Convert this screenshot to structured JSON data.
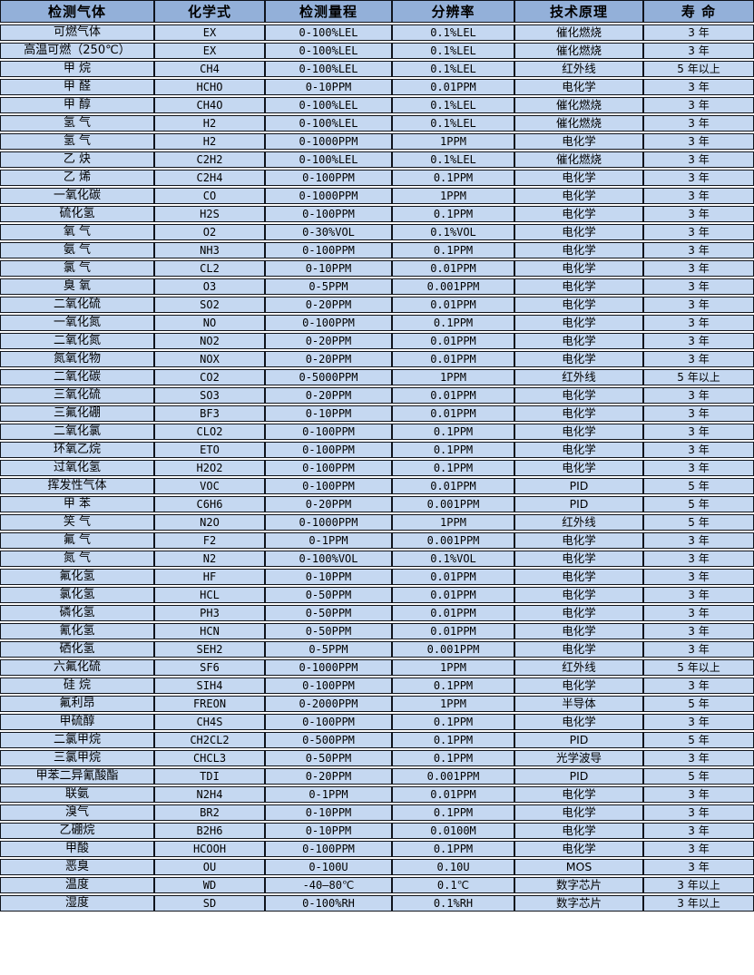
{
  "colors": {
    "header_bg": "#93b0d9",
    "row_bg": "#c5d8f1",
    "border": "#10141c",
    "row_gap": "#ffffff",
    "text": "#000000"
  },
  "chart_data": {
    "type": "table",
    "columns": [
      "检测气体",
      "化学式",
      "检测量程",
      "分辨率",
      "技术原理",
      "寿 命"
    ],
    "rows": [
      [
        "可燃气体",
        "EX",
        "0-100%LEL",
        "0.1%LEL",
        "催化燃烧",
        "3 年"
      ],
      [
        "高温可燃（250℃）",
        "EX",
        "0-100%LEL",
        "0.1%LEL",
        "催化燃烧",
        "3 年"
      ],
      [
        "甲 烷",
        "CH4",
        "0-100%LEL",
        "0.1%LEL",
        "红外线",
        "5 年以上"
      ],
      [
        "甲 醛",
        "HCHO",
        "0-10PPM",
        "0.01PPM",
        "电化学",
        "3 年"
      ],
      [
        "甲 醇",
        "CH4O",
        "0-100%LEL",
        "0.1%LEL",
        "催化燃烧",
        "3 年"
      ],
      [
        "氢 气",
        "H2",
        "0-100%LEL",
        "0.1%LEL",
        "催化燃烧",
        "3 年"
      ],
      [
        "氢 气",
        "H2",
        "0-1000PPM",
        "1PPM",
        "电化学",
        "3 年"
      ],
      [
        "乙 炔",
        "C2H2",
        "0-100%LEL",
        "0.1%LEL",
        "催化燃烧",
        "3 年"
      ],
      [
        "乙 烯",
        "C2H4",
        "0-100PPM",
        "0.1PPM",
        "电化学",
        "3 年"
      ],
      [
        "一氧化碳",
        "CO",
        "0-1000PPM",
        "1PPM",
        "电化学",
        "3 年"
      ],
      [
        "硫化氢",
        "H2S",
        "0-100PPM",
        "0.1PPM",
        "电化学",
        "3 年"
      ],
      [
        "氧 气",
        "O2",
        "0-30%VOL",
        "0.1%VOL",
        "电化学",
        "3 年"
      ],
      [
        "氨 气",
        "NH3",
        "0-100PPM",
        "0.1PPM",
        "电化学",
        "3 年"
      ],
      [
        "氯 气",
        "CL2",
        "0-10PPM",
        "0.01PPM",
        "电化学",
        "3 年"
      ],
      [
        "臭 氧",
        "O3",
        "0-5PPM",
        "0.001PPM",
        "电化学",
        "3 年"
      ],
      [
        "二氧化硫",
        "SO2",
        "0-20PPM",
        "0.01PPM",
        "电化学",
        "3 年"
      ],
      [
        "一氧化氮",
        "NO",
        "0-100PPM",
        "0.1PPM",
        "电化学",
        "3 年"
      ],
      [
        "二氧化氮",
        "NO2",
        "0-20PPM",
        "0.01PPM",
        "电化学",
        "3 年"
      ],
      [
        "氮氧化物",
        "NOX",
        "0-20PPM",
        "0.01PPM",
        "电化学",
        "3 年"
      ],
      [
        "二氧化碳",
        "CO2",
        "0-5000PPM",
        "1PPM",
        "红外线",
        "5 年以上"
      ],
      [
        "三氧化硫",
        "SO3",
        "0-20PPM",
        "0.01PPM",
        "电化学",
        "3 年"
      ],
      [
        "三氟化硼",
        "BF3",
        "0-10PPM",
        "0.01PPM",
        "电化学",
        "3 年"
      ],
      [
        "二氧化氯",
        "CLO2",
        "0-100PPM",
        "0.1PPM",
        "电化学",
        "3 年"
      ],
      [
        "环氧乙烷",
        "ETO",
        "0-100PPM",
        "0.1PPM",
        "电化学",
        "3 年"
      ],
      [
        "过氧化氢",
        "H2O2",
        "0-100PPM",
        "0.1PPM",
        "电化学",
        "3 年"
      ],
      [
        "挥发性气体",
        "VOC",
        "0-100PPM",
        "0.01PPM",
        "PID",
        "5 年"
      ],
      [
        "甲 苯",
        "C6H6",
        "0-20PPM",
        "0.001PPM",
        "PID",
        "5 年"
      ],
      [
        "笑 气",
        "N2O",
        "0-1000PPM",
        "1PPM",
        "红外线",
        "5 年"
      ],
      [
        "氟 气",
        "F2",
        "0-1PPM",
        "0.001PPM",
        "电化学",
        "3 年"
      ],
      [
        "氮 气",
        "N2",
        "0-100%VOL",
        "0.1%VOL",
        "电化学",
        "3 年"
      ],
      [
        "氟化氢",
        "HF",
        "0-10PPM",
        "0.01PPM",
        "电化学",
        "3 年"
      ],
      [
        "氯化氢",
        "HCL",
        "0-50PPM",
        "0.01PPM",
        "电化学",
        "3 年"
      ],
      [
        "磷化氢",
        "PH3",
        "0-50PPM",
        "0.01PPM",
        "电化学",
        "3 年"
      ],
      [
        "氰化氢",
        "HCN",
        "0-50PPM",
        "0.01PPM",
        "电化学",
        "3 年"
      ],
      [
        "硒化氢",
        "SEH2",
        "0-5PPM",
        "0.001PPM",
        "电化学",
        "3 年"
      ],
      [
        "六氟化硫",
        "SF6",
        "0-1000PPM",
        "1PPM",
        "红外线",
        "5 年以上"
      ],
      [
        "硅 烷",
        "SIH4",
        "0-100PPM",
        "0.1PPM",
        "电化学",
        "3 年"
      ],
      [
        "氟利昂",
        "FREON",
        "0-2000PPM",
        "1PPM",
        "半导体",
        "5 年"
      ],
      [
        "甲硫醇",
        "CH4S",
        "0-100PPM",
        "0.1PPM",
        "电化学",
        "3 年"
      ],
      [
        "二氯甲烷",
        "CH2CL2",
        "0-500PPM",
        "0.1PPM",
        "PID",
        "5 年"
      ],
      [
        "三氯甲烷",
        "CHCL3",
        "0-50PPM",
        "0.1PPM",
        "光学波导",
        "3 年"
      ],
      [
        "甲苯二异氰酸酯",
        "TDI",
        "0-20PPM",
        "0.001PPM",
        "PID",
        "5 年"
      ],
      [
        "联氨",
        "N2H4",
        "0-1PPM",
        "0.01PPM",
        "电化学",
        "3 年"
      ],
      [
        "溴气",
        "BR2",
        "0-10PPM",
        "0.1PPM",
        "电化学",
        "3 年"
      ],
      [
        "乙硼烷",
        "B2H6",
        "0-10PPM",
        "0.0100M",
        "电化学",
        "3 年"
      ],
      [
        "甲酸",
        "HCOOH",
        "0-100PPM",
        "0.1PPM",
        "电化学",
        "3 年"
      ],
      [
        "恶臭",
        "OU",
        "0-100U",
        "0.10U",
        "MOS",
        "3 年"
      ],
      [
        "温度",
        "WD",
        "-40—80℃",
        "0.1℃",
        "数字芯片",
        "3 年以上"
      ],
      [
        "湿度",
        "SD",
        "0-100%RH",
        "0.1%RH",
        "数字芯片",
        "3 年以上"
      ]
    ]
  }
}
